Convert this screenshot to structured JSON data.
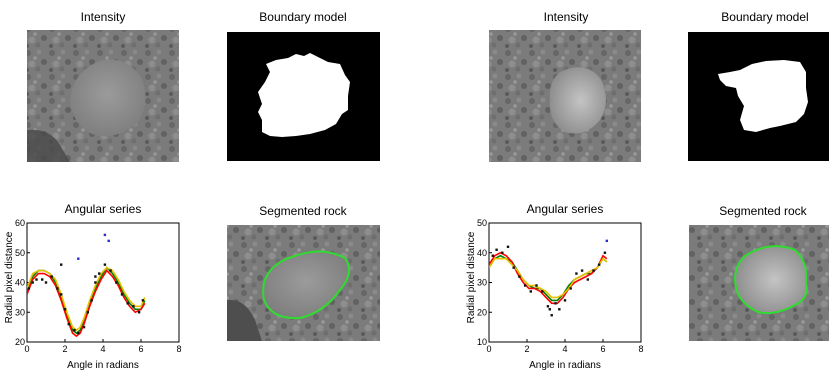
{
  "panels": [
    {
      "intensity_title": "Intensity",
      "boundary_title": "Boundary model",
      "series_title": "Angular series",
      "segmented_title": "Segmented rock",
      "chart_data": {
        "type": "line",
        "title": "Angular series",
        "xlabel": "Angle in radians",
        "ylabel": "Radial pixel distance",
        "xlim": [
          0,
          8
        ],
        "ylim": [
          20,
          60
        ],
        "xticks": [
          "0",
          "2",
          "4",
          "6",
          "8"
        ],
        "yticks": [
          "20",
          "30",
          "40",
          "50",
          "60"
        ],
        "series": [
          {
            "color": "#008000",
            "x": [
              0,
              0.3,
              0.6,
              0.9,
              1.2,
              1.5,
              1.8,
              2.1,
              2.4,
              2.6,
              2.8,
              3.0,
              3.3,
              3.6,
              3.9,
              4.2,
              4.5,
              4.8,
              5.1,
              5.4,
              5.7,
              6.0,
              6.2
            ],
            "y": [
              37,
              42,
              44,
              44,
              43,
              40,
              35,
              29,
              24,
              23,
              24,
              27,
              33,
              38,
              42,
              45,
              43,
              40,
              36,
              33,
              31,
              31,
              34
            ]
          },
          {
            "color": "#ff0000",
            "x": [
              0,
              0.3,
              0.6,
              0.9,
              1.2,
              1.5,
              1.8,
              2.1,
              2.4,
              2.6,
              2.8,
              3.0,
              3.3,
              3.6,
              3.9,
              4.2,
              4.5,
              4.8,
              5.1,
              5.4,
              5.7,
              6.0,
              6.2
            ],
            "y": [
              36,
              41,
              43,
              43,
              42,
              39,
              34,
              28,
              23,
              22,
              23,
              26,
              32,
              37,
              41,
              44,
              42,
              39,
              35,
              32,
              30,
              31,
              33
            ]
          },
          {
            "color": "#e8c000",
            "x": [
              0,
              0.3,
              0.6,
              0.9,
              1.2,
              1.5,
              1.8,
              2.1,
              2.4,
              2.6,
              2.8,
              3.0,
              3.3,
              3.6,
              3.9,
              4.2,
              4.5,
              4.8,
              5.1,
              5.4,
              5.7,
              6.0,
              6.2
            ],
            "y": [
              38,
              43,
              44,
              44,
              43,
              41,
              36,
              30,
              25,
              24,
              25,
              28,
              34,
              39,
              43,
              45,
              44,
              41,
              37,
              34,
              32,
              32,
              35
            ]
          }
        ],
        "points": [
          {
            "x": 0.1,
            "y": 38
          },
          {
            "x": 0.3,
            "y": 40
          },
          {
            "x": 0.5,
            "y": 41
          },
          {
            "x": 0.8,
            "y": 41
          },
          {
            "x": 1.0,
            "y": 40
          },
          {
            "x": 1.3,
            "y": 42
          },
          {
            "x": 1.6,
            "y": 38
          },
          {
            "x": 1.8,
            "y": 36
          },
          {
            "x": 2.0,
            "y": 31
          },
          {
            "x": 2.2,
            "y": 26
          },
          {
            "x": 2.5,
            "y": 24
          },
          {
            "x": 2.7,
            "y": 23
          },
          {
            "x": 3.0,
            "y": 25
          },
          {
            "x": 3.2,
            "y": 30
          },
          {
            "x": 3.4,
            "y": 34
          },
          {
            "x": 3.6,
            "y": 40
          },
          {
            "x": 3.8,
            "y": 43
          },
          {
            "x": 4.1,
            "y": 46
          },
          {
            "x": 4.4,
            "y": 44
          },
          {
            "x": 4.7,
            "y": 40
          },
          {
            "x": 5.0,
            "y": 36
          },
          {
            "x": 5.3,
            "y": 33
          },
          {
            "x": 5.6,
            "y": 32
          },
          {
            "x": 5.9,
            "y": 30
          },
          {
            "x": 6.1,
            "y": 34
          },
          {
            "x": 2.7,
            "y": 48
          },
          {
            "x": 3.6,
            "y": 42
          },
          {
            "x": 4.1,
            "y": 56
          },
          {
            "x": 4.3,
            "y": 54
          },
          {
            "x": 1.8,
            "y": 46
          }
        ]
      }
    },
    {
      "intensity_title": "Intensity",
      "boundary_title": "Boundary model",
      "series_title": "Angular series",
      "segmented_title": "Segmented rock",
      "chart_data": {
        "type": "line",
        "title": "Angular series",
        "xlabel": "Angle in radians",
        "ylabel": "Radial pixel distance",
        "xlim": [
          0,
          8
        ],
        "ylim": [
          10,
          50
        ],
        "xticks": [
          "0",
          "2",
          "4",
          "6",
          "8"
        ],
        "yticks": [
          "10",
          "20",
          "30",
          "40",
          "50"
        ],
        "series": [
          {
            "color": "#008000",
            "x": [
              0,
              0.3,
              0.6,
              0.9,
              1.2,
              1.5,
              1.8,
              2.1,
              2.4,
              2.7,
              3.0,
              3.3,
              3.6,
              3.9,
              4.2,
              4.5,
              4.8,
              5.1,
              5.4,
              5.7,
              6.0,
              6.2
            ],
            "y": [
              35,
              38,
              39,
              38,
              37,
              34,
              31,
              29,
              28,
              28,
              26,
              24,
              24,
              26,
              29,
              31,
              32,
              33,
              33,
              35,
              38,
              37
            ]
          },
          {
            "color": "#ff0000",
            "x": [
              0,
              0.3,
              0.6,
              0.9,
              1.2,
              1.5,
              1.8,
              2.1,
              2.4,
              2.7,
              3.0,
              3.3,
              3.6,
              3.9,
              4.2,
              4.5,
              4.8,
              5.1,
              5.4,
              5.7,
              6.0,
              6.2
            ],
            "y": [
              36,
              39,
              40,
              39,
              37,
              33,
              30,
              28,
              28,
              27,
              25,
              23,
              23,
              25,
              28,
              30,
              31,
              32,
              33,
              35,
              39,
              38
            ]
          },
          {
            "color": "#e8c000",
            "x": [
              0,
              0.3,
              0.6,
              0.9,
              1.2,
              1.5,
              1.8,
              2.1,
              2.4,
              2.7,
              3.0,
              3.3,
              3.6,
              3.9,
              4.2,
              4.5,
              4.8,
              5.1,
              5.4,
              5.7,
              6.0,
              6.2
            ],
            "y": [
              35,
              38,
              38,
              38,
              36,
              34,
              31,
              29,
              29,
              28,
              27,
              25,
              25,
              26,
              28,
              31,
              32,
              33,
              34,
              35,
              38,
              37
            ]
          }
        ],
        "points": [
          {
            "x": 0.2,
            "y": 39
          },
          {
            "x": 0.4,
            "y": 41
          },
          {
            "x": 0.7,
            "y": 40
          },
          {
            "x": 1.0,
            "y": 42
          },
          {
            "x": 1.3,
            "y": 35
          },
          {
            "x": 1.6,
            "y": 32
          },
          {
            "x": 1.9,
            "y": 29
          },
          {
            "x": 2.2,
            "y": 27
          },
          {
            "x": 2.5,
            "y": 29
          },
          {
            "x": 2.8,
            "y": 27
          },
          {
            "x": 3.1,
            "y": 22
          },
          {
            "x": 3.3,
            "y": 19
          },
          {
            "x": 3.5,
            "y": 23
          },
          {
            "x": 3.7,
            "y": 21
          },
          {
            "x": 4.0,
            "y": 24
          },
          {
            "x": 4.3,
            "y": 28
          },
          {
            "x": 4.6,
            "y": 33
          },
          {
            "x": 4.9,
            "y": 34
          },
          {
            "x": 5.2,
            "y": 31
          },
          {
            "x": 5.5,
            "y": 34
          },
          {
            "x": 5.8,
            "y": 36
          },
          {
            "x": 6.1,
            "y": 40
          },
          {
            "x": 6.2,
            "y": 44
          },
          {
            "x": 3.2,
            "y": 21
          }
        ]
      }
    }
  ]
}
